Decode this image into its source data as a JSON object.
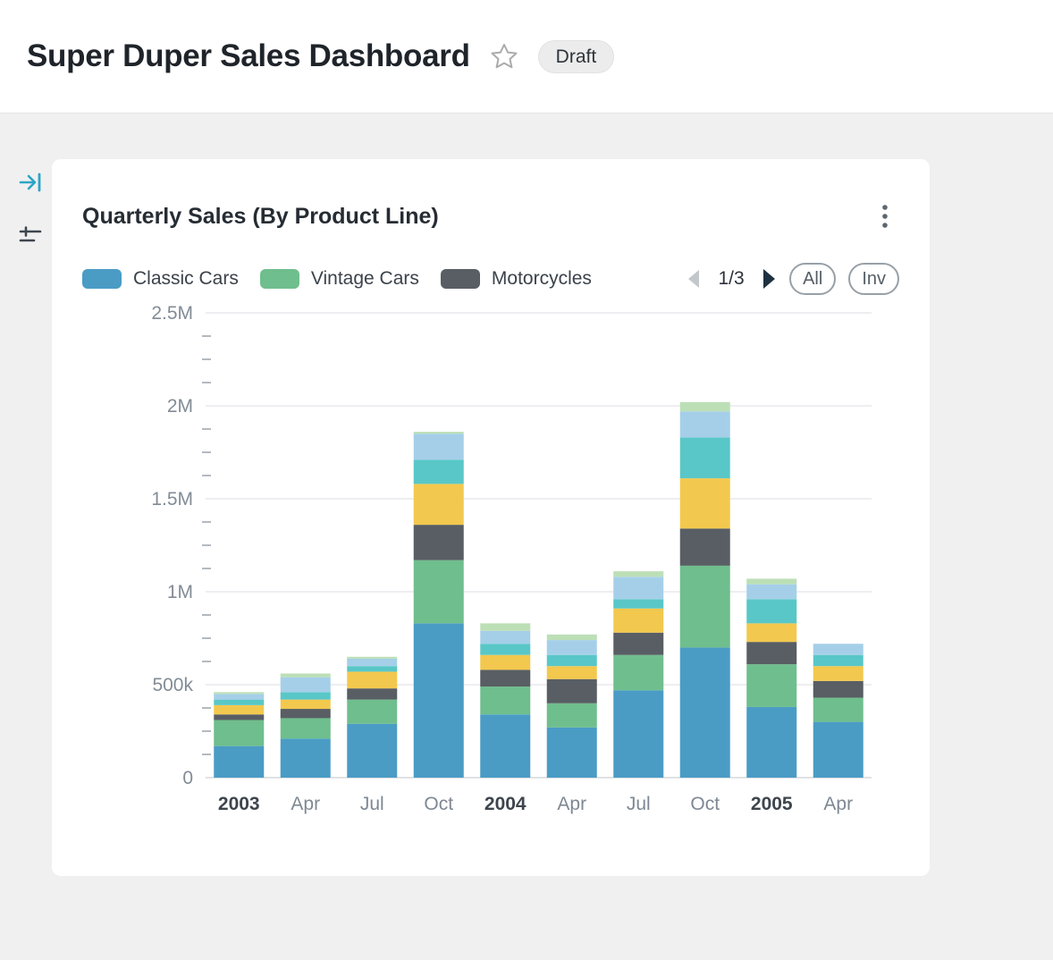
{
  "header": {
    "title": "Super Duper Sales Dashboard",
    "badge": "Draft"
  },
  "card": {
    "title": "Quarterly Sales (By Product Line)",
    "legend": [
      {
        "label": "Classic Cars",
        "color": "#4a9cc5"
      },
      {
        "label": "Vintage Cars",
        "color": "#6fbe8d"
      },
      {
        "label": "Motorcycles",
        "color": "#585e63"
      }
    ],
    "pagination": {
      "page_indicator": "1/3"
    },
    "buttons": [
      {
        "label": "All"
      },
      {
        "label": "Inv"
      }
    ]
  },
  "icons": {
    "star": "star-outline",
    "menu": "kebab-vertical",
    "collapse": "arrow-to-bar",
    "filter": "filter-lines",
    "prev": "triangle-left",
    "next": "triangle-right"
  },
  "colors": {
    "accent_teal": "#2ba4c6",
    "page_bg": "#f0f0f1",
    "grid": "#e9e9ed",
    "axis_zero": "#d6d8db",
    "ylabel": "#828c96",
    "xlabel_month": "#7e8893",
    "xlabel_year": "#3e454d"
  },
  "chart_data": {
    "type": "bar",
    "stacked": true,
    "title": "Quarterly Sales (By Product Line)",
    "categories": [
      "2003",
      "Apr",
      "Jul",
      "Oct",
      "2004",
      "Apr",
      "Jul",
      "Oct",
      "2005",
      "Apr"
    ],
    "bold_categories": [
      "2003",
      "2004",
      "2005"
    ],
    "ylim": [
      0,
      2500000
    ],
    "yticks": [
      {
        "label": "0",
        "value": 0
      },
      {
        "label": "500k",
        "value": 500000
      },
      {
        "label": "1M",
        "value": 1000000
      },
      {
        "label": "1.5M",
        "value": 1500000
      },
      {
        "label": "2M",
        "value": 2000000
      },
      {
        "label": "2.5M",
        "value": 2500000
      }
    ],
    "minor_tick_step": 125000,
    "grid": true,
    "legend_position": "top",
    "legend_pages": 3,
    "series": [
      {
        "name": "Classic Cars",
        "color": "#4a9cc5",
        "values": [
          170000,
          210000,
          290000,
          830000,
          340000,
          270000,
          470000,
          700000,
          380000,
          300000
        ]
      },
      {
        "name": "Vintage Cars",
        "color": "#6fbe8d",
        "values": [
          140000,
          110000,
          130000,
          340000,
          150000,
          130000,
          190000,
          440000,
          230000,
          130000
        ]
      },
      {
        "name": "Motorcycles",
        "color": "#585e63",
        "values": [
          30000,
          50000,
          60000,
          190000,
          90000,
          130000,
          120000,
          200000,
          120000,
          90000
        ]
      },
      {
        "name": "",
        "color": "#f3c84e",
        "values": [
          50000,
          50000,
          90000,
          220000,
          80000,
          70000,
          130000,
          270000,
          100000,
          80000
        ]
      },
      {
        "name": "",
        "color": "#59c7c7",
        "values": [
          30000,
          40000,
          30000,
          130000,
          60000,
          60000,
          50000,
          220000,
          130000,
          60000
        ]
      },
      {
        "name": "",
        "color": "#a5cfe9",
        "values": [
          30000,
          80000,
          40000,
          140000,
          70000,
          80000,
          120000,
          140000,
          80000,
          60000
        ]
      },
      {
        "name": "",
        "color": "#bcdfb6",
        "values": [
          10000,
          20000,
          10000,
          10000,
          40000,
          30000,
          30000,
          50000,
          30000,
          0
        ]
      }
    ]
  }
}
